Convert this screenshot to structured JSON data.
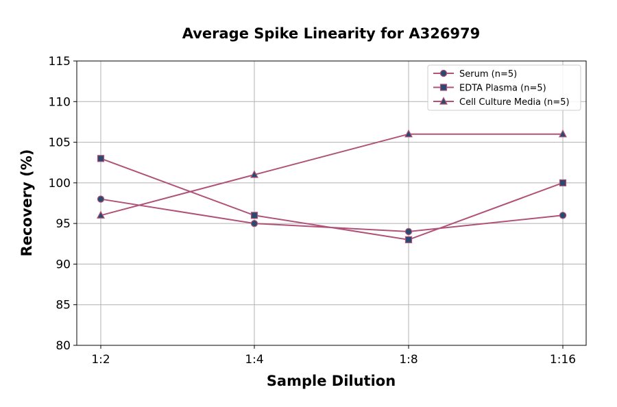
{
  "chart_data": {
    "type": "line",
    "title": "Average Spike Linearity for A326979",
    "xlabel": "Sample Dilution",
    "ylabel": "Recovery (%)",
    "categories": [
      "1:2",
      "1:4",
      "1:8",
      "1:16"
    ],
    "ylim": [
      80,
      115
    ],
    "yticks": [
      80,
      85,
      90,
      95,
      100,
      105,
      110,
      115
    ],
    "grid": true,
    "legend_position": "top-right",
    "line_color": "#b05277",
    "marker_color": "#2b4a6f",
    "series": [
      {
        "name": "Serum (n=5)",
        "marker": "circle",
        "values": [
          98,
          95,
          94,
          96
        ]
      },
      {
        "name": "EDTA Plasma (n=5)",
        "marker": "square",
        "values": [
          103,
          96,
          93,
          100
        ]
      },
      {
        "name": "Cell Culture Media (n=5)",
        "marker": "triangle",
        "values": [
          96,
          101,
          106,
          106
        ]
      }
    ]
  }
}
